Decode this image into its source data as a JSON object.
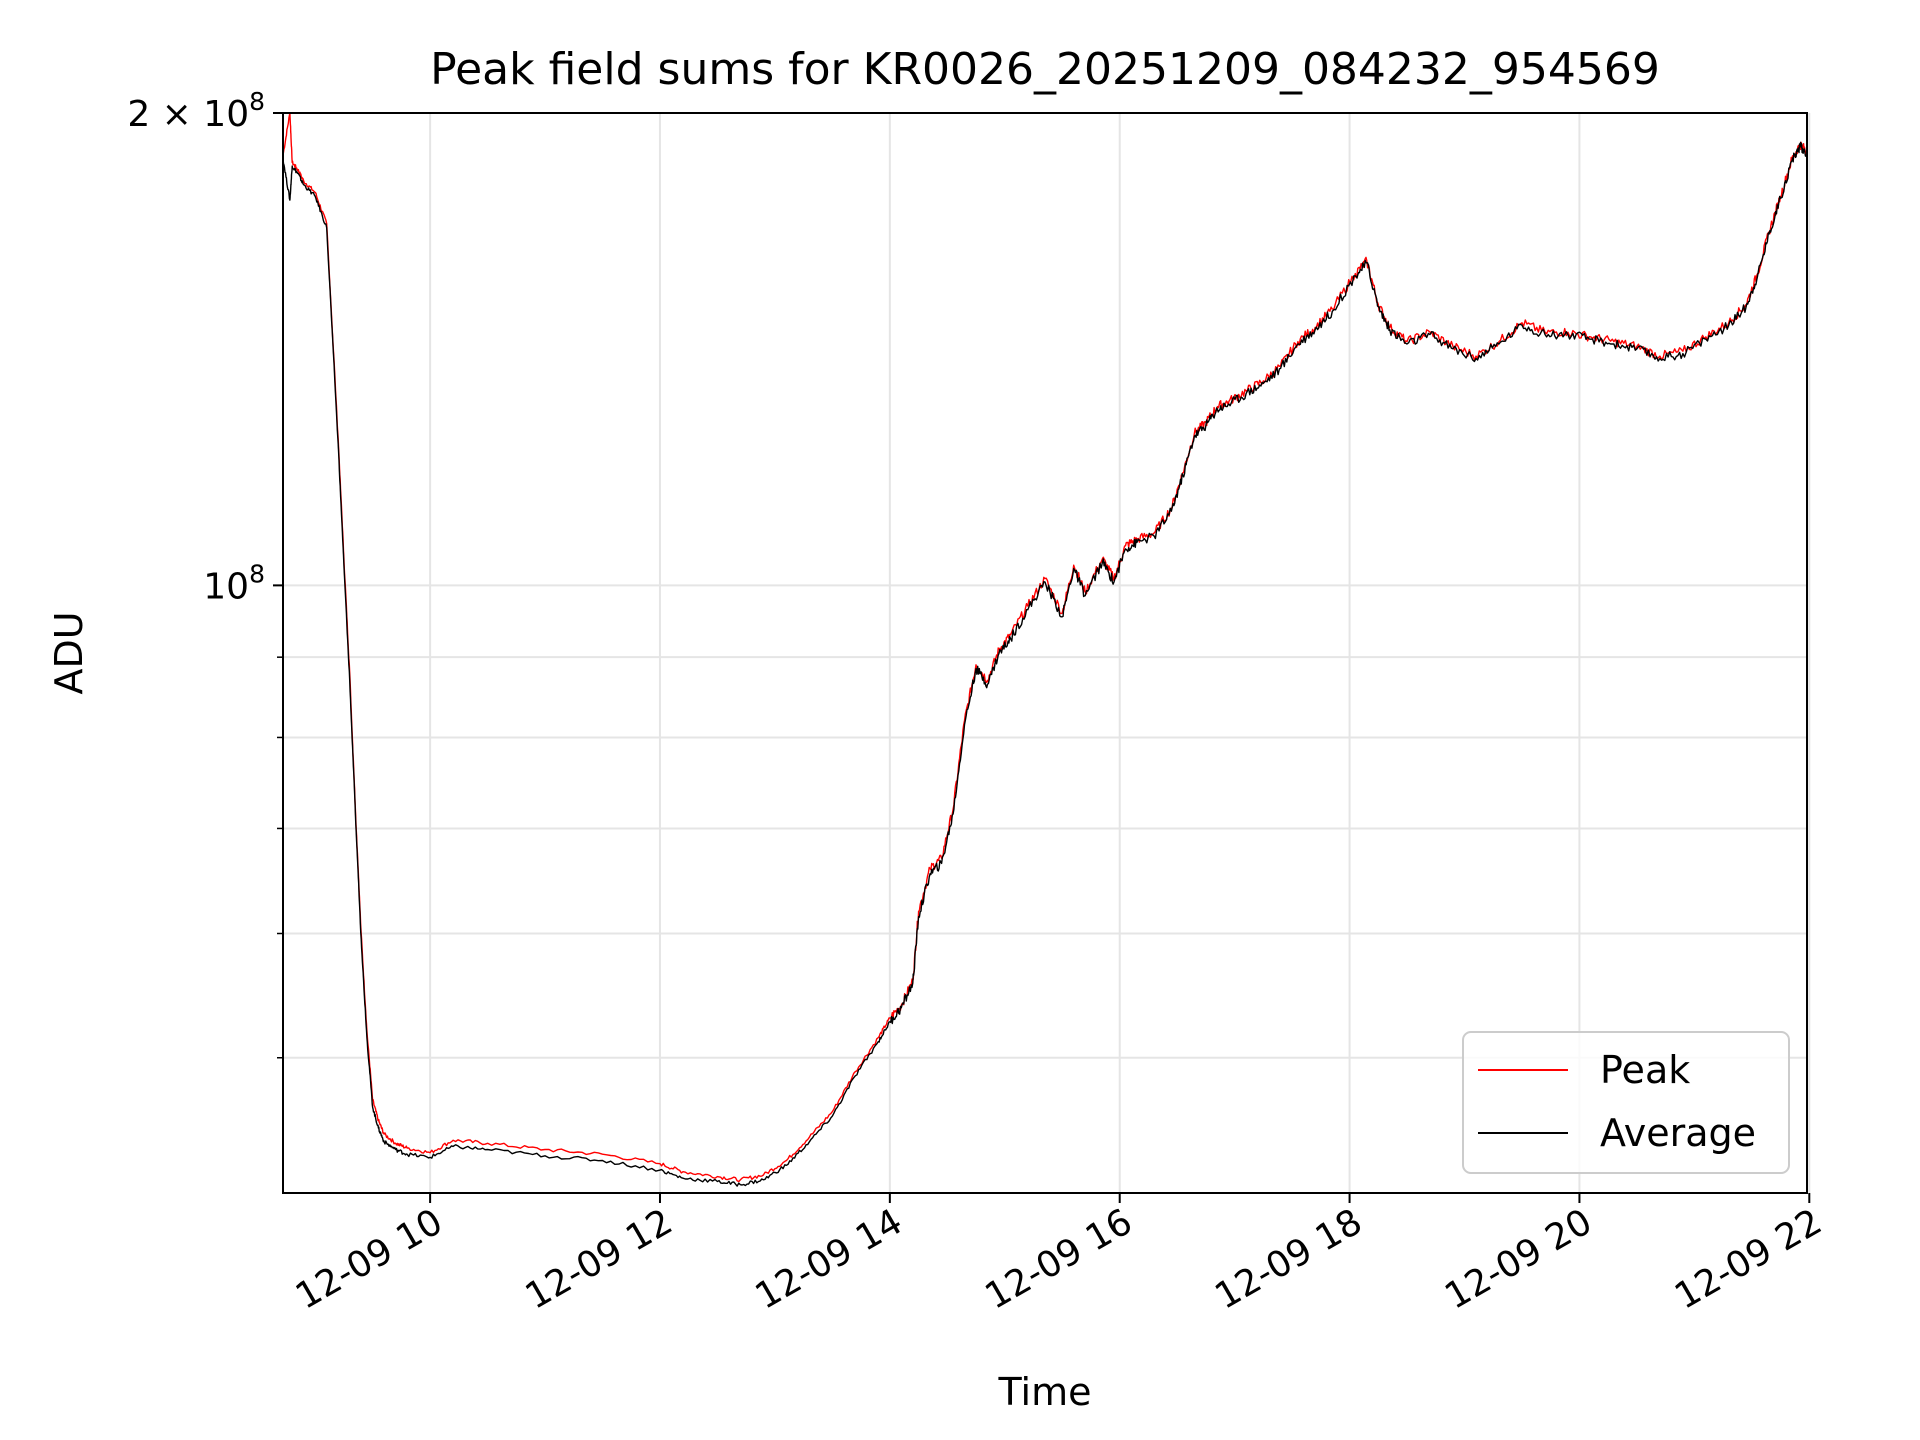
{
  "chart_data": {
    "type": "line",
    "title": "Peak field sums for KR0026_20251209_084232_954569",
    "xlabel": "Time",
    "ylabel": "ADU",
    "yscale": "log",
    "xlim_hours": [
      8.72,
      21.98
    ],
    "ylim": [
      41000000,
      200000000
    ],
    "grid": true,
    "legend_position": "lower-right",
    "x_ticks": [
      {
        "value": 10,
        "label": "12-09 10"
      },
      {
        "value": 12,
        "label": "12-09 12"
      },
      {
        "value": 14,
        "label": "12-09 14"
      },
      {
        "value": 16,
        "label": "12-09 16"
      },
      {
        "value": 18,
        "label": "12-09 18"
      },
      {
        "value": 20,
        "label": "12-09 20"
      },
      {
        "value": 22,
        "label": "12-09 22"
      }
    ],
    "y_major_ticks": [
      {
        "value": 100000000,
        "base": "10",
        "exp": "8"
      },
      {
        "value": 200000000,
        "base": "2 × 10",
        "exp": "8"
      }
    ],
    "y_minor_ticks": [
      50000000,
      60000000,
      70000000,
      80000000,
      90000000
    ],
    "x_hours": [
      8.72,
      8.78,
      8.8,
      8.85,
      8.9,
      9.0,
      9.1,
      9.2,
      9.25,
      9.3,
      9.35,
      9.4,
      9.45,
      9.5,
      9.55,
      9.6,
      9.7,
      9.8,
      10.0,
      10.2,
      10.5,
      11.0,
      11.5,
      12.0,
      12.2,
      12.5,
      12.7,
      12.9,
      13.1,
      13.3,
      13.5,
      13.7,
      13.9,
      14.0,
      14.1,
      14.2,
      14.25,
      14.35,
      14.45,
      14.55,
      14.65,
      14.75,
      14.85,
      14.95,
      15.05,
      15.2,
      15.35,
      15.5,
      15.6,
      15.7,
      15.85,
      15.95,
      16.05,
      16.15,
      16.3,
      16.45,
      16.55,
      16.65,
      16.75,
      16.85,
      16.95,
      17.1,
      17.25,
      17.4,
      17.55,
      17.7,
      17.85,
      18.05,
      18.15,
      18.25,
      18.35,
      18.5,
      18.7,
      18.9,
      19.1,
      19.3,
      19.5,
      19.7,
      19.9,
      20.1,
      20.3,
      20.5,
      20.7,
      20.9,
      21.1,
      21.3,
      21.45,
      21.55,
      21.65,
      21.75,
      21.85,
      21.92,
      21.98
    ],
    "series": [
      {
        "name": "Peak",
        "color": "#ff0000",
        "values": [
          188000000,
          200000000,
          186000000,
          184000000,
          181000000,
          178000000,
          170000000,
          124000000,
          104000000,
          88000000,
          72000000,
          60000000,
          52000000,
          47000000,
          45600000,
          44700000,
          44100000,
          43800000,
          43500000,
          44300000,
          44100000,
          43700000,
          43400000,
          42800000,
          42300000,
          42000000,
          41800000,
          42100000,
          43000000,
          44500000,
          46200000,
          49000000,
          51500000,
          53000000,
          54000000,
          56000000,
          62000000,
          66000000,
          67000000,
          72000000,
          82000000,
          89000000,
          87000000,
          91000000,
          93000000,
          97000000,
          101000000,
          96000000,
          103000000,
          99000000,
          104000000,
          101000000,
          106000000,
          107000000,
          108000000,
          112000000,
          118000000,
          125000000,
          127000000,
          130000000,
          131000000,
          133000000,
          135000000,
          138000000,
          143000000,
          146000000,
          150000000,
          158000000,
          161000000,
          151000000,
          146000000,
          143000000,
          145000000,
          142000000,
          140000000,
          143000000,
          147000000,
          145000000,
          145000000,
          144000000,
          143000000,
          142000000,
          140000000,
          141000000,
          144000000,
          147000000,
          151000000,
          158000000,
          168000000,
          177000000,
          187000000,
          191000000,
          189000000
        ]
      },
      {
        "name": "Average",
        "color": "#000000",
        "values": [
          187000000,
          176000000,
          185000000,
          183000000,
          180000000,
          177000000,
          169000000,
          123000000,
          103000000,
          87000000,
          71500000,
          59500000,
          51500000,
          46500000,
          45100000,
          44200000,
          43700000,
          43400000,
          43200000,
          43900000,
          43700000,
          43300000,
          43000000,
          42400000,
          41900000,
          41700000,
          41500000,
          41800000,
          42700000,
          44200000,
          45900000,
          48700000,
          51200000,
          52700000,
          53800000,
          55800000,
          61500000,
          65500000,
          66500000,
          71500000,
          81500000,
          88500000,
          86500000,
          90500000,
          92500000,
          96500000,
          100500000,
          95500000,
          102500000,
          98500000,
          103500000,
          100500000,
          105500000,
          106500000,
          107500000,
          111500000,
          117500000,
          124500000,
          126500000,
          129500000,
          130500000,
          132500000,
          134500000,
          137500000,
          142500000,
          145500000,
          149500000,
          157500000,
          160500000,
          150500000,
          145500000,
          142500000,
          144500000,
          141500000,
          139500000,
          142500000,
          146500000,
          144500000,
          144500000,
          143500000,
          142500000,
          141500000,
          139500000,
          140500000,
          143500000,
          146500000,
          150500000,
          157500000,
          167500000,
          176500000,
          186500000,
          190500000,
          188500000
        ]
      }
    ],
    "legend": [
      "Peak",
      "Average"
    ]
  }
}
